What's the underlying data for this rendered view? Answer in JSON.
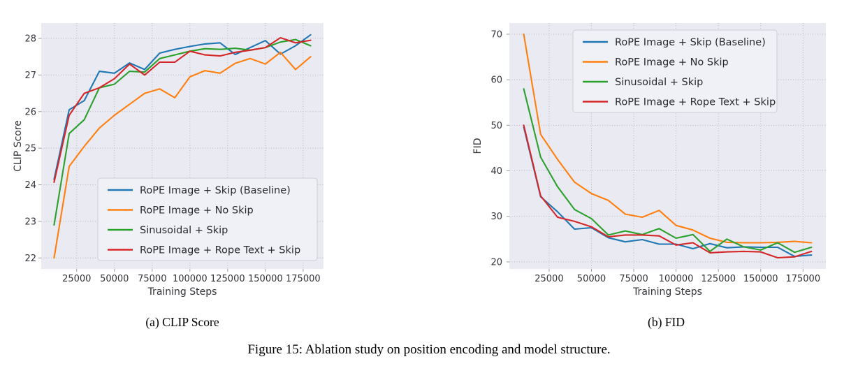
{
  "figure": {
    "caption_a": "(a) CLIP Score",
    "caption_b": "(b) FID",
    "caption": "Figure 15: Ablation study on position encoding and model structure."
  },
  "colors": {
    "blue": "#1f77b4",
    "orange": "#ff7f0e",
    "green": "#2ca02c",
    "red": "#d62728",
    "plot_background": "#eaeaf2",
    "gridline": "#b8b8c4",
    "tick_text": "#33333a",
    "legend_text": "#2a2a2e"
  },
  "chart_data": [
    {
      "type": "line",
      "panel": "a",
      "title": "(a) CLIP Score",
      "xlabel": "Training Steps",
      "ylabel": "CLIP Score",
      "grid": true,
      "legend_position": "lower right",
      "xlim": [
        1500,
        188500
      ],
      "ylim": [
        21.7,
        28.42
      ],
      "xticks": [
        25000,
        50000,
        75000,
        100000,
        125000,
        150000,
        175000
      ],
      "xtick_labels": [
        "25000",
        "50000",
        "75000",
        "100000",
        "125000",
        "150000",
        "175000"
      ],
      "yticks": [
        22,
        23,
        24,
        25,
        26,
        27,
        28
      ],
      "ytick_labels": [
        "22",
        "23",
        "24",
        "25",
        "26",
        "27",
        "28"
      ],
      "x": [
        10000,
        20000,
        30000,
        40000,
        50000,
        60000,
        70000,
        80000,
        90000,
        100000,
        110000,
        120000,
        130000,
        140000,
        150000,
        160000,
        170000,
        180000
      ],
      "series": [
        {
          "name": "RoPE Image + Skip (Baseline)",
          "color": "#1f77b4",
          "values": [
            24.15,
            26.05,
            26.3,
            27.1,
            27.05,
            27.33,
            27.15,
            27.6,
            27.7,
            27.78,
            27.85,
            27.88,
            27.56,
            27.75,
            27.94,
            27.57,
            27.8,
            28.1
          ]
        },
        {
          "name": "RoPE Image + No Skip",
          "color": "#ff7f0e",
          "values": [
            22.0,
            24.5,
            25.05,
            25.55,
            25.9,
            26.2,
            26.5,
            26.62,
            26.38,
            26.95,
            27.12,
            27.05,
            27.32,
            27.45,
            27.3,
            27.62,
            27.15,
            27.5
          ]
        },
        {
          "name": "Sinusoidal + Skip",
          "color": "#2ca02c",
          "values": [
            22.9,
            25.4,
            25.78,
            26.65,
            26.75,
            27.1,
            27.08,
            27.45,
            27.55,
            27.65,
            27.72,
            27.7,
            27.73,
            27.68,
            27.75,
            27.9,
            27.97,
            27.8
          ]
        },
        {
          "name": "RoPE Image + Rope Text + Skip",
          "color": "#d62728",
          "values": [
            24.07,
            25.9,
            26.5,
            26.65,
            26.9,
            27.3,
            27.0,
            27.35,
            27.35,
            27.65,
            27.55,
            27.52,
            27.62,
            27.68,
            27.75,
            28.02,
            27.88,
            27.95
          ]
        }
      ]
    },
    {
      "type": "line",
      "panel": "b",
      "title": "(b) FID",
      "xlabel": "Training Steps",
      "ylabel": "FID",
      "grid": true,
      "legend_position": "upper right",
      "xlim": [
        1500,
        188500
      ],
      "ylim": [
        18.45,
        72.45
      ],
      "xticks": [
        25000,
        50000,
        75000,
        100000,
        125000,
        150000,
        175000
      ],
      "xtick_labels": [
        "25000",
        "50000",
        "75000",
        "100000",
        "125000",
        "150000",
        "175000"
      ],
      "yticks": [
        20,
        30,
        40,
        50,
        60,
        70
      ],
      "ytick_labels": [
        "20",
        "30",
        "40",
        "50",
        "60",
        "70"
      ],
      "x": [
        10000,
        20000,
        30000,
        40000,
        50000,
        60000,
        70000,
        80000,
        90000,
        100000,
        110000,
        120000,
        130000,
        140000,
        150000,
        160000,
        170000,
        180000
      ],
      "series": [
        {
          "name": "RoPE Image + Skip (Baseline)",
          "color": "#1f77b4",
          "values": [
            49.6,
            34.3,
            31.0,
            27.2,
            27.5,
            25.3,
            24.4,
            24.9,
            23.9,
            23.9,
            22.9,
            24.0,
            23.1,
            23.3,
            23.2,
            23.2,
            21.2,
            21.5
          ]
        },
        {
          "name": "RoPE Image + No Skip",
          "color": "#ff7f0e",
          "values": [
            70.0,
            48.0,
            42.5,
            37.5,
            35.0,
            33.5,
            30.5,
            29.8,
            31.3,
            28.0,
            27.0,
            25.2,
            24.3,
            24.2,
            24.2,
            24.3,
            24.5,
            24.2
          ]
        },
        {
          "name": "Sinusoidal + Skip",
          "color": "#2ca02c",
          "values": [
            58.0,
            43.0,
            36.5,
            31.5,
            29.5,
            25.9,
            26.8,
            26.0,
            27.3,
            25.2,
            26.0,
            22.3,
            25.0,
            23.3,
            22.6,
            24.2,
            22.1,
            23.2
          ]
        },
        {
          "name": "RoPE Image + Rope Text + Skip",
          "color": "#d62728",
          "values": [
            50.0,
            34.5,
            29.8,
            28.9,
            27.7,
            25.5,
            25.9,
            25.9,
            25.7,
            23.7,
            24.2,
            22.0,
            22.2,
            22.3,
            22.2,
            20.9,
            21.1,
            22.3
          ]
        }
      ]
    }
  ]
}
